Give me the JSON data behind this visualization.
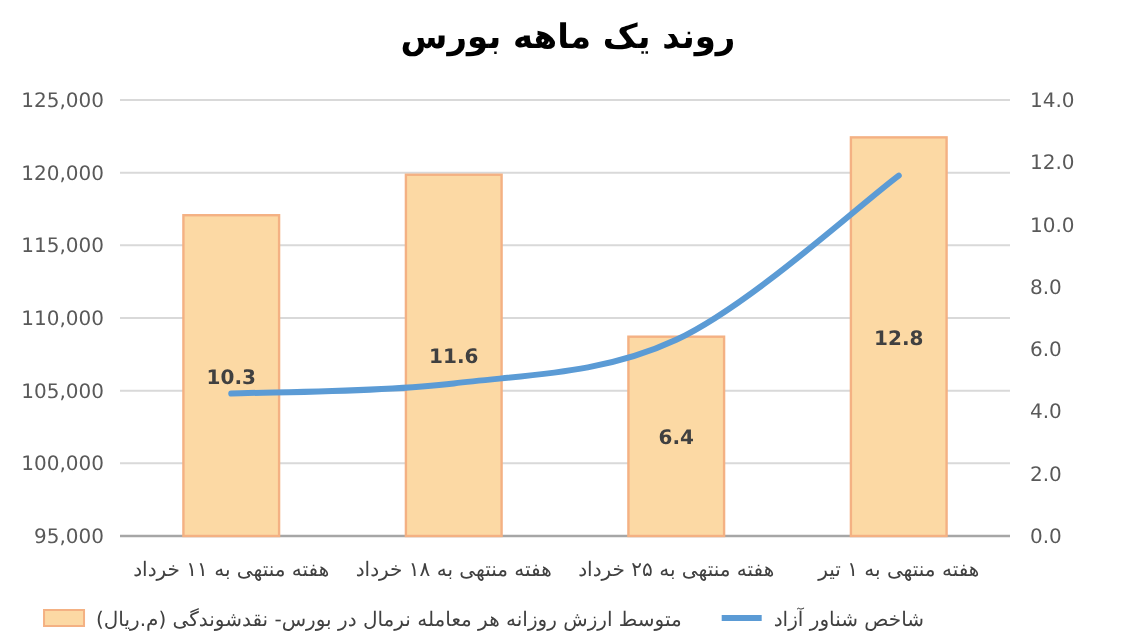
{
  "chart_data": {
    "type": "bar",
    "title": "روند یک ماهه بورس",
    "categories": [
      "هفته منتهی به ۱۱ خرداد",
      "هفته منتهی به ۱۸ خرداد",
      "هفته منتهی به ۲۵ خرداد",
      "هفته منتهی به ۱ تیر"
    ],
    "series": [
      {
        "name": "متوسط ارزش روزانه هر معامله نرمال در بورس- نقدشوندگی (م.ریال)",
        "axis": "y2",
        "color": "#fcd9a4",
        "values": [
          10.3,
          11.6,
          6.4,
          12.8
        ],
        "value_labels": [
          "10.3",
          "11.6",
          "6.4",
          "12.8"
        ]
      },
      {
        "name": "شاخص شناور آزاد",
        "type": "line",
        "color": "#5b9bd5",
        "values": [
          104800,
          105500,
          108500,
          119800
        ]
      }
    ],
    "ylim": [
      95000,
      125000
    ],
    "yticks": [
      {
        "value": 95000,
        "label": "95,000"
      },
      {
        "value": 100000,
        "label": "100,000"
      },
      {
        "value": 105000,
        "label": "105,000"
      },
      {
        "value": 110000,
        "label": "110,000"
      },
      {
        "value": 115000,
        "label": "115,000"
      },
      {
        "value": 120000,
        "label": "120,000"
      },
      {
        "value": 125000,
        "label": "125,000"
      }
    ],
    "y2lim": [
      0,
      14
    ],
    "y2ticks": [
      {
        "value": 0,
        "label": "0.0"
      },
      {
        "value": 2,
        "label": "2.0"
      },
      {
        "value": 4,
        "label": "4.0"
      },
      {
        "value": 6,
        "label": "6.0"
      },
      {
        "value": 8,
        "label": "8.0"
      },
      {
        "value": 10,
        "label": "10.0"
      },
      {
        "value": 12,
        "label": "12.0"
      },
      {
        "value": 14,
        "label": "14.0"
      }
    ],
    "grid": "y",
    "legend": "bottom"
  }
}
